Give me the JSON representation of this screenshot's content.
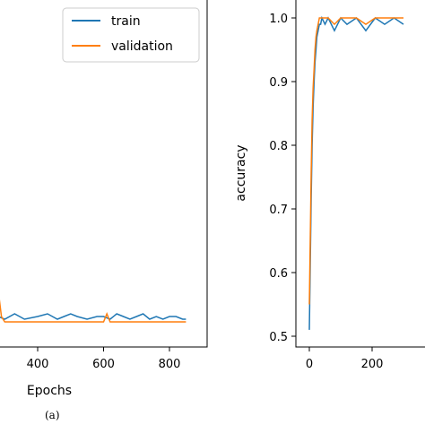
{
  "caption": "(a)",
  "chart_data": [
    {
      "type": "line",
      "xlabel": "Epochs",
      "ylabel": "",
      "x_ticks": [
        400,
        600,
        800
      ],
      "legend": {
        "placement": "top-right",
        "entries": [
          "train",
          "validation"
        ]
      },
      "colors": {
        "train": "#1f77b4",
        "validation": "#ff7f0e"
      },
      "series": [
        {
          "name": "train",
          "x": [
            250,
            280,
            300,
            330,
            360,
            400,
            430,
            460,
            480,
            500,
            520,
            550,
            580,
            600,
            620,
            640,
            660,
            680,
            700,
            720,
            740,
            760,
            780,
            800,
            820,
            840,
            850
          ],
          "y": [
            0.03,
            0.05,
            0.04,
            0.06,
            0.04,
            0.05,
            0.06,
            0.04,
            0.05,
            0.06,
            0.05,
            0.04,
            0.05,
            0.05,
            0.04,
            0.06,
            0.05,
            0.04,
            0.05,
            0.06,
            0.04,
            0.05,
            0.04,
            0.05,
            0.05,
            0.04,
            0.04
          ]
        },
        {
          "name": "validation",
          "x": [
            250,
            270,
            280,
            290,
            300,
            350,
            400,
            450,
            500,
            550,
            600,
            610,
            620,
            650,
            700,
            750,
            800,
            850
          ],
          "y": [
            0.03,
            0.04,
            0.15,
            0.05,
            0.03,
            0.03,
            0.03,
            0.03,
            0.03,
            0.03,
            0.03,
            0.06,
            0.03,
            0.03,
            0.03,
            0.03,
            0.03,
            0.03
          ]
        }
      ]
    },
    {
      "type": "line",
      "xlabel": "",
      "ylabel": "accuracy",
      "x_ticks": [
        0,
        200
      ],
      "y_ticks": [
        0.5,
        0.6,
        0.7,
        0.8,
        0.9,
        1.0
      ],
      "y_tick_labels": [
        "0.5",
        "0.6",
        "0.7",
        "0.8",
        "0.9",
        "1.0"
      ],
      "ylim": [
        0.48,
        1.02
      ],
      "colors": {
        "train": "#1f77b4",
        "validation": "#ff7f0e"
      },
      "series": [
        {
          "name": "train",
          "x": [
            0,
            3,
            6,
            9,
            12,
            15,
            18,
            21,
            24,
            28,
            32,
            36,
            40,
            50,
            60,
            80,
            100,
            120,
            150,
            180,
            210,
            240,
            270,
            300
          ],
          "y": [
            0.51,
            0.62,
            0.72,
            0.8,
            0.86,
            0.9,
            0.93,
            0.95,
            0.97,
            0.98,
            0.99,
            0.99,
            1.0,
            0.99,
            1.0,
            0.98,
            1.0,
            0.99,
            1.0,
            0.98,
            1.0,
            0.99,
            1.0,
            0.99
          ]
        },
        {
          "name": "validation",
          "x": [
            0,
            3,
            6,
            9,
            12,
            15,
            18,
            21,
            24,
            28,
            32,
            36,
            40,
            50,
            60,
            80,
            100,
            120,
            150,
            180,
            210,
            240,
            270,
            300
          ],
          "y": [
            0.55,
            0.66,
            0.76,
            0.84,
            0.89,
            0.92,
            0.95,
            0.97,
            0.98,
            0.99,
            1.0,
            1.0,
            1.0,
            1.0,
            1.0,
            0.99,
            1.0,
            1.0,
            1.0,
            0.99,
            1.0,
            1.0,
            1.0,
            1.0
          ]
        }
      ]
    }
  ]
}
